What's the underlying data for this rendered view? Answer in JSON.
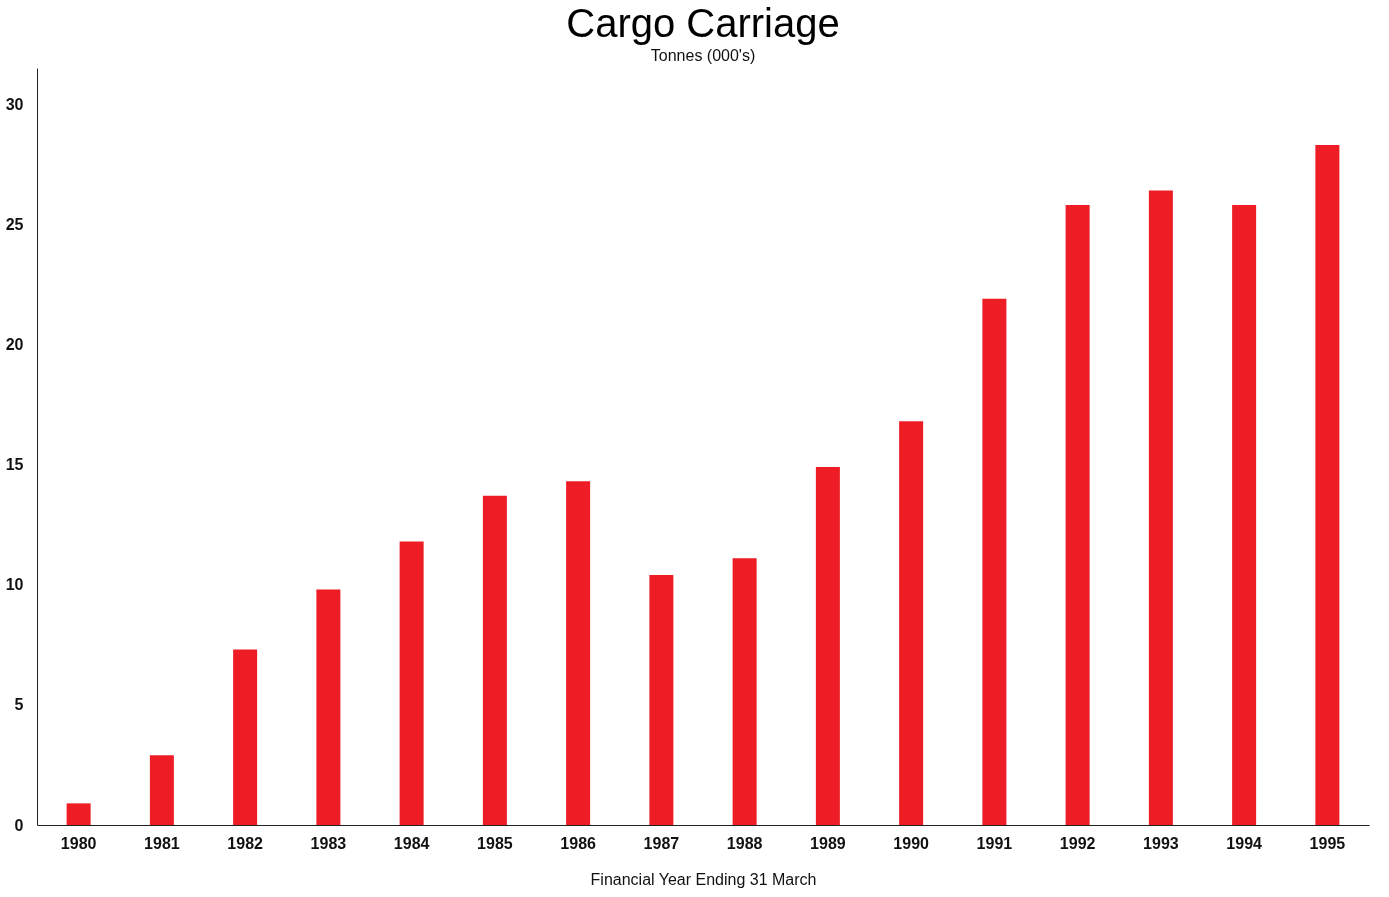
{
  "chart_data": {
    "type": "bar",
    "title": "Cargo Carriage",
    "ylabel": "Tonnes (000's)",
    "xlabel": "Financial Year Ending 31 March",
    "categories": [
      "1980",
      "1981",
      "1982",
      "1983",
      "1984",
      "1985",
      "1986",
      "1987",
      "1988",
      "1989",
      "1990",
      "1991",
      "1992",
      "1993",
      "1994",
      "1995"
    ],
    "values": [
      0.9,
      2.9,
      7.3,
      9.8,
      11.8,
      13.7,
      14.3,
      10.4,
      11.1,
      14.9,
      16.8,
      21.9,
      25.8,
      26.4,
      25.8,
      28.3
    ],
    "color": "#ee1c25",
    "ylim": [
      0,
      31.5
    ],
    "yticks": [
      0,
      5,
      10,
      15,
      20,
      25,
      30
    ],
    "grid": false
  }
}
